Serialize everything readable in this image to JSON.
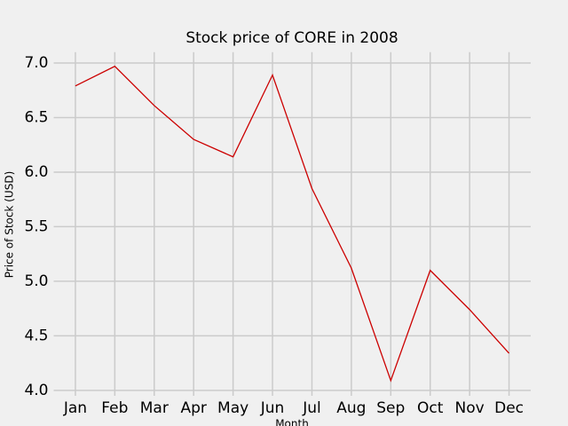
{
  "chart_data": {
    "type": "line",
    "title": "Stock price of CORE in 2008",
    "x_label": "Month",
    "y_label": "Price of Stock (USD)",
    "categories": [
      "Jan",
      "Feb",
      "Mar",
      "Apr",
      "May",
      "Jun",
      "Jul",
      "Aug",
      "Sep",
      "Oct",
      "Nov",
      "Dec"
    ],
    "series": [
      {
        "color": "#cc0000",
        "values": [
          6.79,
          6.97,
          6.61,
          6.3,
          6.14,
          6.89,
          5.85,
          5.12,
          4.09,
          5.1,
          4.74,
          4.34
        ]
      }
    ],
    "ylim": [
      3.95,
      7.1
    ],
    "yticks": [
      {
        "value": 4,
        "label": "4.0"
      },
      4.5,
      {
        "value": 5,
        "label": "5.0"
      },
      5.5,
      {
        "value": 6,
        "label": "6.0"
      },
      6.5,
      {
        "value": 7,
        "label": "7.0"
      }
    ],
    "grid": true
  }
}
